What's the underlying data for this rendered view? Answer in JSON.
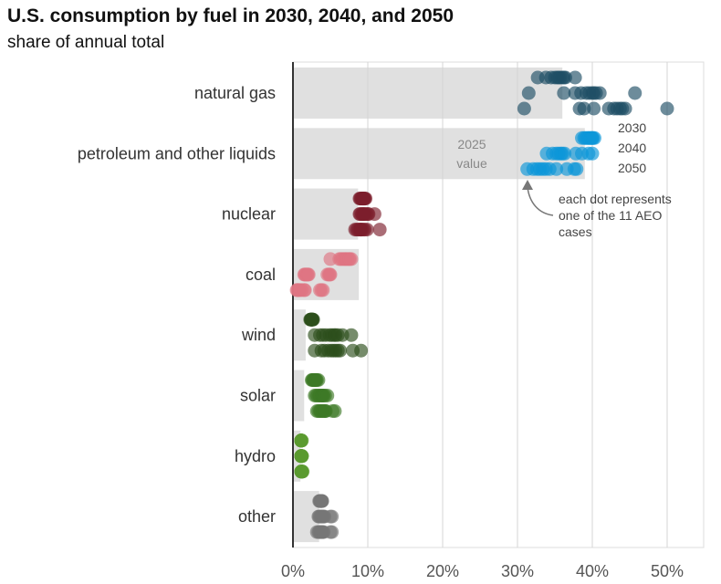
{
  "chart_data": {
    "type": "scatter",
    "title": "U.S. consumption by fuel in 2030, 2040, and 2050",
    "subtitle": "share of annual total",
    "xlim": [
      0,
      55
    ],
    "xticks": [
      0,
      10,
      20,
      30,
      40,
      50
    ],
    "xtick_labels": [
      "0%",
      "10%",
      "20%",
      "30%",
      "40%",
      "50%"
    ],
    "grid": true,
    "year_labels": [
      "2030",
      "2040",
      "2050"
    ],
    "bar_annotation": [
      "2025",
      "value"
    ],
    "dot_annotation": [
      "each dot represents",
      "one of the 11 AEO",
      "cases"
    ],
    "categories": [
      {
        "name": "natural gas",
        "color": "#1f4e66",
        "value_2025": 36,
        "y2030": [
          32.7,
          33.8,
          34.5,
          35,
          35.3,
          35.5,
          35.7,
          36,
          36.2,
          36.4,
          37.7
        ],
        "y2040": [
          31.5,
          36.2,
          37.7,
          38.5,
          39.2,
          39.6,
          40,
          40.2,
          40.5,
          41,
          45.7
        ],
        "y2050": [
          30.9,
          38.3,
          38.9,
          40.2,
          42.2,
          42.9,
          43.3,
          43.7,
          44,
          44.4,
          50
        ]
      },
      {
        "name": "petroleum and other liquids",
        "color": "#0c97d8",
        "value_2025": 39,
        "y2030": [
          38.6,
          38.9,
          39.1,
          39.3,
          39.5,
          39.6,
          39.8,
          39.9,
          40,
          40.1,
          40.3
        ],
        "y2040": [
          33.9,
          34.7,
          35.2,
          35.5,
          35.8,
          36,
          36.3,
          37.8,
          38.6,
          39.5,
          40
        ],
        "y2050": [
          31.3,
          32.1,
          32.6,
          33,
          33.4,
          33.8,
          34.3,
          35.2,
          36.6,
          37.6,
          37.9
        ]
      },
      {
        "name": "nuclear",
        "color": "#7d1f2c",
        "value_2025": 8.7,
        "y2030": [
          8.9,
          9,
          9.1,
          9.2,
          9.3,
          9.3,
          9.4,
          9.5,
          9.5,
          9.6,
          9.7
        ],
        "y2040": [
          8.9,
          9,
          9.2,
          9.3,
          9.4,
          9.5,
          9.6,
          9.8,
          10,
          10.1,
          10.9
        ],
        "y2050": [
          8.3,
          8.5,
          8.7,
          8.9,
          9,
          9.1,
          9.2,
          9.4,
          9.6,
          9.9,
          11.6
        ]
      },
      {
        "name": "coal",
        "color": "#de7482",
        "value_2025": 8.8,
        "y2030": [
          5,
          6.2,
          6.4,
          6.6,
          6.8,
          7,
          7.1,
          7.3,
          7.5,
          7.6,
          7.8
        ],
        "y2040": [
          1.5,
          1.6,
          1.7,
          1.8,
          1.9,
          2,
          2.1,
          4.6,
          4.8,
          4.9,
          5
        ],
        "y2050": [
          0.5,
          0.6,
          0.7,
          0.8,
          1,
          1.2,
          1.5,
          1.6,
          3.6,
          3.8,
          4
        ]
      },
      {
        "name": "wind",
        "color": "#2d4f1c",
        "value_2025": 1.7,
        "y2030": [
          2.3,
          2.4,
          2.4,
          2.4,
          2.5,
          2.5,
          2.5,
          2.6,
          2.6,
          2.6,
          2.7
        ],
        "y2040": [
          2.9,
          3.6,
          4,
          4.4,
          4.9,
          5.2,
          5.5,
          5.7,
          6,
          6.6,
          7.8
        ],
        "y2050": [
          2.9,
          3.8,
          4.2,
          4.7,
          5.1,
          5.4,
          5.7,
          6,
          6.3,
          8,
          9.1
        ]
      },
      {
        "name": "solar",
        "color": "#3e7a26",
        "value_2025": 1.5,
        "y2030": [
          2.5,
          2.6,
          2.7,
          2.8,
          2.8,
          2.9,
          3,
          3,
          3.1,
          3.2,
          3.4
        ],
        "y2040": [
          2.9,
          3.1,
          3.3,
          3.5,
          3.6,
          3.8,
          3.9,
          4,
          4.1,
          4.3,
          4.6
        ],
        "y2050": [
          3.2,
          3.4,
          3.6,
          3.7,
          3.9,
          4,
          4.2,
          4.3,
          4.4,
          5.3,
          5.6
        ]
      },
      {
        "name": "hydro",
        "color": "#5a9a2f",
        "value_2025": 1,
        "y2030": [
          1.1,
          1.1,
          1.1,
          1.1,
          1.1,
          1.1,
          1.1,
          1.1,
          1.1,
          1.1,
          1.2
        ],
        "y2040": [
          1.1,
          1.1,
          1.1,
          1.1,
          1.1,
          1.1,
          1.1,
          1.1,
          1.2,
          1.2,
          1.2
        ],
        "y2050": [
          1.1,
          1.1,
          1.1,
          1.1,
          1.2,
          1.2,
          1.2,
          1.2,
          1.2,
          1.2,
          1.3
        ]
      },
      {
        "name": "other",
        "color": "#777777",
        "value_2025": 3.5,
        "y2030": [
          3.5,
          3.6,
          3.6,
          3.7,
          3.7,
          3.7,
          3.8,
          3.8,
          3.8,
          3.9,
          3.9
        ],
        "y2040": [
          3.4,
          3.5,
          3.6,
          3.7,
          3.8,
          3.9,
          4,
          4.1,
          4.2,
          5,
          5.2
        ],
        "y2050": [
          3.2,
          3.4,
          3.5,
          3.6,
          3.7,
          3.8,
          3.9,
          4,
          4.1,
          5,
          5.2
        ]
      }
    ]
  }
}
